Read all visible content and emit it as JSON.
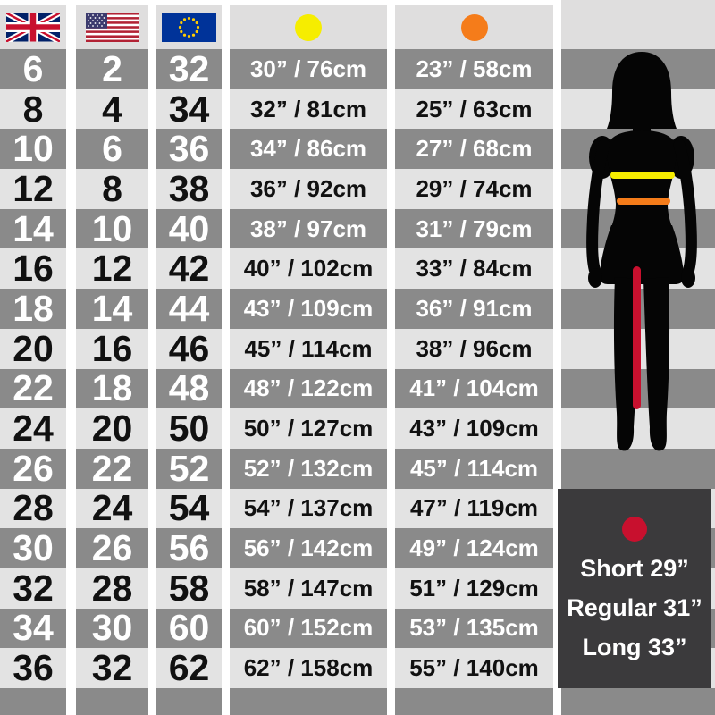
{
  "colors": {
    "row_dark": "#8a8a8a",
    "row_light": "#e3e3e3",
    "header_bg": "#dfdede",
    "box_bg": "#3b3a3c",
    "yellow": "#f6ed00",
    "orange": "#f57c1a",
    "red": "#c8102e",
    "silhouette": "#050505"
  },
  "header": {
    "uk_flag": "uk-flag",
    "us_flag": "us-flag",
    "eu_flag": "eu-flag",
    "yellow_dot": "#f6ed00",
    "orange_dot": "#f57c1a"
  },
  "table": {
    "rows": [
      {
        "uk": "6",
        "us": "2",
        "eu": "32",
        "yellow": "30” / 76cm",
        "orange": "23” / 58cm"
      },
      {
        "uk": "8",
        "us": "4",
        "eu": "34",
        "yellow": "32” / 81cm",
        "orange": "25” / 63cm"
      },
      {
        "uk": "10",
        "us": "6",
        "eu": "36",
        "yellow": "34” / 86cm",
        "orange": "27” / 68cm"
      },
      {
        "uk": "12",
        "us": "8",
        "eu": "38",
        "yellow": "36” / 92cm",
        "orange": "29” / 74cm"
      },
      {
        "uk": "14",
        "us": "10",
        "eu": "40",
        "yellow": "38” / 97cm",
        "orange": "31” / 79cm"
      },
      {
        "uk": "16",
        "us": "12",
        "eu": "42",
        "yellow": "40” / 102cm",
        "orange": "33” / 84cm"
      },
      {
        "uk": "18",
        "us": "14",
        "eu": "44",
        "yellow": "43” / 109cm",
        "orange": "36” / 91cm"
      },
      {
        "uk": "20",
        "us": "16",
        "eu": "46",
        "yellow": "45” / 114cm",
        "orange": "38” / 96cm"
      },
      {
        "uk": "22",
        "us": "18",
        "eu": "48",
        "yellow": "48” / 122cm",
        "orange": "41” / 104cm"
      },
      {
        "uk": "24",
        "us": "20",
        "eu": "50",
        "yellow": "50” / 127cm",
        "orange": "43” / 109cm"
      },
      {
        "uk": "26",
        "us": "22",
        "eu": "52",
        "yellow": "52” / 132cm",
        "orange": "45” / 114cm"
      },
      {
        "uk": "28",
        "us": "24",
        "eu": "54",
        "yellow": "54” / 137cm",
        "orange": "47” / 119cm"
      },
      {
        "uk": "30",
        "us": "26",
        "eu": "56",
        "yellow": "56” / 142cm",
        "orange": "49” / 124cm"
      },
      {
        "uk": "32",
        "us": "28",
        "eu": "58",
        "yellow": "58” / 147cm",
        "orange": "51” / 129cm"
      },
      {
        "uk": "34",
        "us": "30",
        "eu": "60",
        "yellow": "60” / 152cm",
        "orange": "53” / 135cm"
      },
      {
        "uk": "36",
        "us": "32",
        "eu": "62",
        "yellow": "62” / 158cm",
        "orange": "55” / 140cm"
      }
    ]
  },
  "leg_length_box": {
    "lines": [
      "Short 29”",
      "Regular 31”",
      "Long 33”"
    ]
  },
  "chart_data": {
    "type": "table",
    "columns": [
      "UK (flag)",
      "US (flag)",
      "EU (flag)",
      "yellow marker measurement",
      "orange marker measurement"
    ],
    "rows": [
      [
        "6",
        "2",
        "32",
        "30” / 76cm",
        "23” / 58cm"
      ],
      [
        "8",
        "4",
        "34",
        "32” / 81cm",
        "25” / 63cm"
      ],
      [
        "10",
        "6",
        "36",
        "34” / 86cm",
        "27” / 68cm"
      ],
      [
        "12",
        "8",
        "38",
        "36” / 92cm",
        "29” / 74cm"
      ],
      [
        "14",
        "10",
        "40",
        "38” / 97cm",
        "31” / 79cm"
      ],
      [
        "16",
        "12",
        "42",
        "40” / 102cm",
        "33” / 84cm"
      ],
      [
        "18",
        "14",
        "44",
        "43” / 109cm",
        "36” / 91cm"
      ],
      [
        "20",
        "16",
        "46",
        "45” / 114cm",
        "38” / 96cm"
      ],
      [
        "22",
        "18",
        "48",
        "48” / 122cm",
        "41” / 104cm"
      ],
      [
        "24",
        "20",
        "50",
        "50” / 127cm",
        "43” / 109cm"
      ],
      [
        "26",
        "22",
        "52",
        "52” / 132cm",
        "45” / 114cm"
      ],
      [
        "28",
        "24",
        "54",
        "54” / 137cm",
        "47” / 119cm"
      ],
      [
        "30",
        "26",
        "56",
        "56” / 142cm",
        "49” / 124cm"
      ],
      [
        "32",
        "28",
        "58",
        "58” / 147cm",
        "51” / 129cm"
      ],
      [
        "34",
        "30",
        "60",
        "60” / 152cm",
        "53” / 135cm"
      ],
      [
        "36",
        "32",
        "62",
        "62” / 158cm",
        "55” / 140cm"
      ]
    ],
    "legend": {
      "red_marker_lines": [
        "Short 29”",
        "Regular 31”",
        "Long 33”"
      ],
      "figure": "female silhouette with yellow line (upper body), orange line (waist), red line (inside leg)"
    }
  }
}
